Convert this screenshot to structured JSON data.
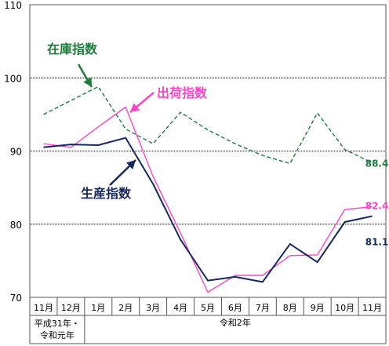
{
  "chart_data": {
    "type": "line",
    "categories": [
      "11月",
      "12月",
      "1月",
      "2月",
      "3月",
      "4月",
      "5月",
      "6月",
      "7月",
      "8月",
      "9月",
      "10月",
      "11月"
    ],
    "era_labels": [
      {
        "text_lines": [
          "平成31年・",
          "令和元年"
        ],
        "from": 0,
        "to": 1
      },
      {
        "text_lines": [
          "令和2年"
        ],
        "from": 2,
        "to": 12
      }
    ],
    "ylim": [
      70,
      110
    ],
    "yticks": [
      70,
      80,
      90,
      100,
      110
    ],
    "gridlines": [
      80,
      90,
      100
    ],
    "series": [
      {
        "name": "在庫指数",
        "color": "#1e7b3c",
        "style": "dashed",
        "values": [
          95.0,
          96.9,
          98.8,
          93.0,
          91.0,
          95.3,
          92.9,
          91.0,
          89.4,
          88.3,
          95.2,
          90.2,
          88.4
        ],
        "end_label": "88.4"
      },
      {
        "name": "出荷指数",
        "color": "#ff44c8",
        "style": "solid",
        "values": [
          91.0,
          90.5,
          93.3,
          96.0,
          86.5,
          78.8,
          70.7,
          73.0,
          73.0,
          75.7,
          75.8,
          82.0,
          82.4
        ],
        "end_label": "82.4"
      },
      {
        "name": "生産指数",
        "color": "#16285e",
        "style": "solid",
        "values": [
          90.5,
          90.9,
          90.8,
          91.8,
          85.5,
          77.9,
          72.3,
          72.8,
          72.1,
          77.3,
          74.8,
          80.3,
          81.1
        ],
        "end_label": "81.1"
      }
    ],
    "annotations": [
      {
        "series": 0,
        "text": "在庫指数"
      },
      {
        "series": 1,
        "text": "出荷指数"
      },
      {
        "series": 2,
        "text": "生産指数"
      }
    ]
  }
}
